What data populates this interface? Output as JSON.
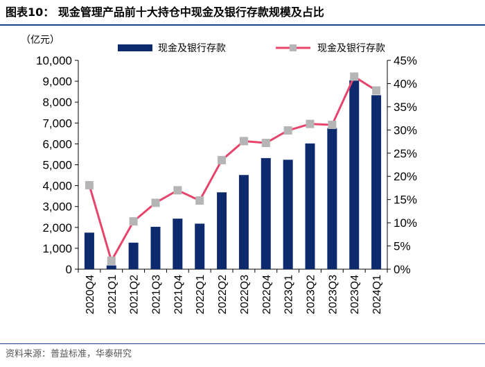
{
  "title": "图表10：  现金管理产品前十大持仓中现金及银行存款规模及占比",
  "source": "资料来源：普益标准，华泰研究",
  "chart_data": {
    "type": "bar+line",
    "unit_label": "（亿元）",
    "categories": [
      "2020Q4",
      "2021Q1",
      "2021Q2",
      "2021Q3",
      "2021Q4",
      "2022Q1",
      "2022Q2",
      "2022Q3",
      "2022Q4",
      "2023Q1",
      "2023Q2",
      "2023Q3",
      "2023Q4",
      "2024Q1"
    ],
    "series": [
      {
        "name": "现金及银行存款",
        "type": "bar",
        "axis": "left",
        "color": "#0d2a6e",
        "values": [
          1750,
          180,
          1270,
          2030,
          2420,
          2180,
          3680,
          4510,
          5320,
          5240,
          6020,
          6760,
          9050,
          8330
        ]
      },
      {
        "name": "现金及银行存款",
        "type": "line",
        "axis": "right",
        "color": "#e8436a",
        "marker_color": "#b5b5b5",
        "values": [
          18.1,
          1.8,
          10.3,
          14.3,
          17.0,
          14.8,
          23.5,
          27.6,
          27.2,
          29.9,
          31.3,
          31.1,
          41.5,
          38.5
        ]
      }
    ],
    "y_left": {
      "min": 0,
      "max": 10000,
      "ticks": [
        "0",
        "1,000",
        "2,000",
        "3,000",
        "4,000",
        "5,000",
        "6,000",
        "7,000",
        "8,000",
        "9,000",
        "10,000"
      ]
    },
    "y_right": {
      "min": 0,
      "max": 45,
      "ticks": [
        "0%",
        "5%",
        "10%",
        "15%",
        "20%",
        "25%",
        "30%",
        "35%",
        "40%",
        "45%"
      ]
    },
    "legend_position": "top"
  }
}
